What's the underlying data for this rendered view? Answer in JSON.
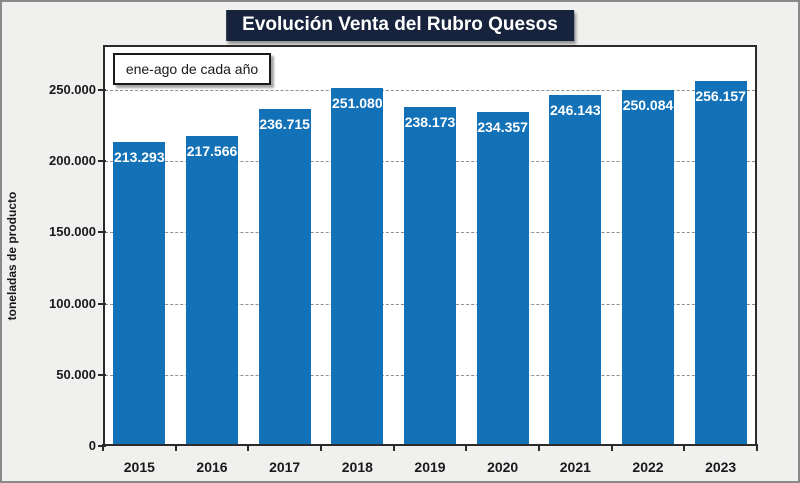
{
  "title": "Evolución Venta del Rubro Quesos",
  "annotation": "ene-ago de cada año",
  "colors": {
    "bar": "#1271b7",
    "title_background": "#17233c",
    "title_text": "#ffffff",
    "page_background": "#f0f0ef",
    "plot_background": "#ffffff",
    "plot_border": "#2b2b2b",
    "gridline": "#8f8f8f",
    "bar_label_text": "#ffffff",
    "axis_text": "#1a1a1a"
  },
  "chart_data": {
    "type": "bar",
    "title": "Evolución Venta del Rubro Quesos",
    "annotation": "ene-ago de cada año",
    "categories": [
      "2015",
      "2016",
      "2017",
      "2018",
      "2019",
      "2020",
      "2021",
      "2022",
      "2023"
    ],
    "values": [
      213293,
      217566,
      236715,
      251080,
      238173,
      234357,
      246143,
      250084,
      256157
    ],
    "value_labels": [
      "213.293",
      "217.566",
      "236.715",
      "251.080",
      "238.173",
      "234.357",
      "246.143",
      "250.084",
      "256.157"
    ],
    "xlabel": "",
    "ylabel": "toneladas de producto",
    "ylim": [
      0,
      281600
    ],
    "yticks": [
      {
        "value": 0,
        "label": "0"
      },
      {
        "value": 50000,
        "label": "50.000"
      },
      {
        "value": 100000,
        "label": "100.000"
      },
      {
        "value": 150000,
        "label": "150.000"
      },
      {
        "value": 200000,
        "label": "200.000"
      },
      {
        "value": 250000,
        "label": "250.000"
      }
    ],
    "grid": "horizontal-dashed",
    "legend": "none",
    "bar_label_position": "inside-top"
  }
}
